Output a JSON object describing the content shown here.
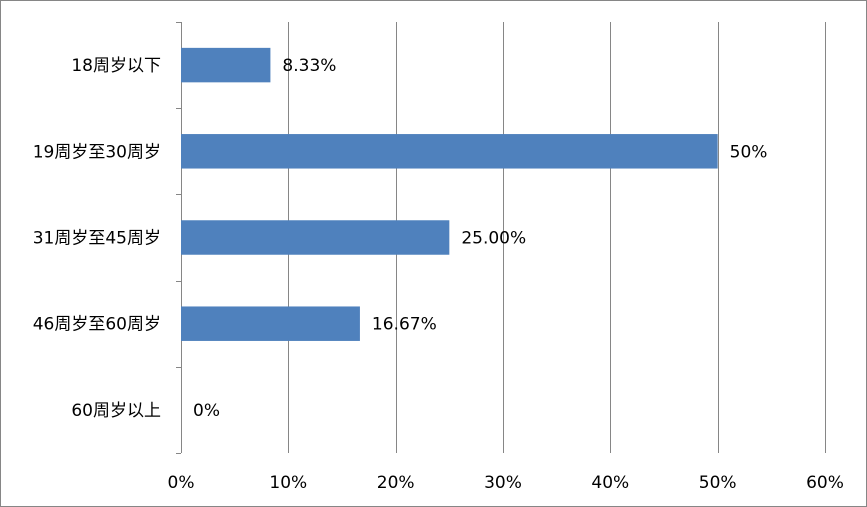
{
  "chart_data": {
    "type": "bar",
    "orientation": "horizontal",
    "categories": [
      "18周岁以下",
      "19周岁至30周岁",
      "31周岁至45周岁",
      "46周岁至60周岁",
      "60周岁以上"
    ],
    "values": [
      8.33,
      50,
      25.0,
      16.67,
      0
    ],
    "data_labels": [
      "8.33%",
      "50%",
      "25.00%",
      "16.67%",
      "0%"
    ],
    "x_ticks": [
      "0%",
      "10%",
      "20%",
      "30%",
      "40%",
      "50%",
      "60%"
    ],
    "xlim": [
      0,
      60
    ],
    "grid": "vertical",
    "legend": "none",
    "colors": {
      "bar": "#4f81bd",
      "grid": "#868686",
      "axis": "#868686"
    }
  }
}
